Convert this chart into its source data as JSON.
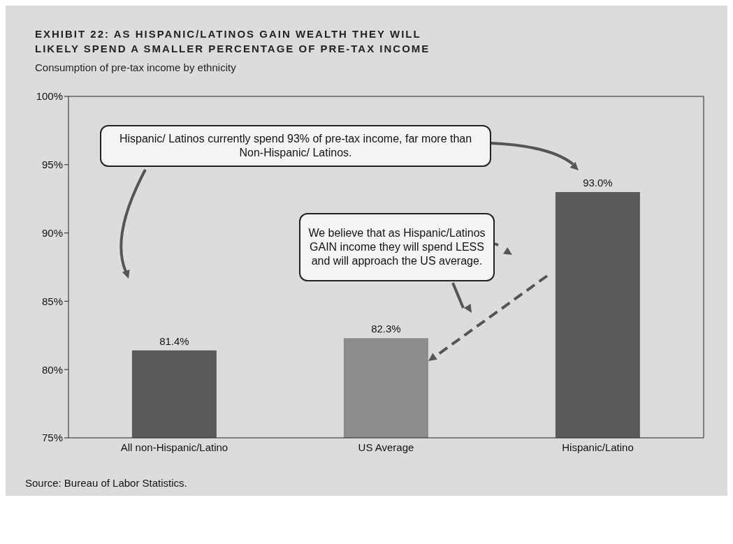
{
  "chart_data": {
    "type": "bar",
    "title": "EXHIBIT 22: AS HISPANIC/LATINOS GAIN WEALTH THEY WILL LIKELY SPEND A SMALLER PERCENTAGE OF PRE-TAX INCOME",
    "subtitle": "Consumption of pre-tax income by ethnicity",
    "categories": [
      "All non-Hispanic/Latino",
      "US Average",
      "Hispanic/Latino"
    ],
    "values": [
      81.4,
      82.3,
      93.0
    ],
    "colors": [
      "#5a5a5a",
      "#8c8c8c",
      "#5a5a5a"
    ],
    "value_labels": [
      "81.4%",
      "82.3%",
      "93.0%"
    ],
    "ylim": [
      75,
      100
    ],
    "yticks": [
      {
        "value": 75,
        "label": "75%"
      },
      {
        "value": 80,
        "label": "80%"
      },
      {
        "value": 85,
        "label": "85%"
      },
      {
        "value": 90,
        "label": "90%"
      },
      {
        "value": 95,
        "label": "95%"
      },
      {
        "value": 100,
        "label": "100%"
      }
    ],
    "grid": false,
    "legend": false,
    "annotations": [
      "Hispanic/ Latinos currently spend 93% of pre-tax income, far more than Non-Hispanic/ Latinos.",
      "We believe that as Hispanic/Latinos GAIN income they will spend LESS and will approach the US average.",
      "Source: Bureau of Labor Statistics."
    ]
  }
}
